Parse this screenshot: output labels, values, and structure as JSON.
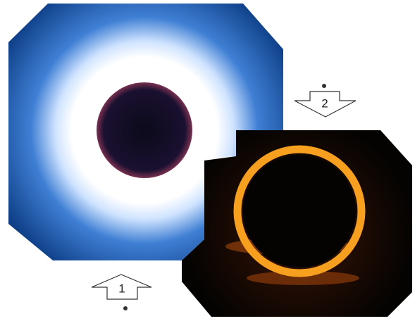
{
  "arrows": [
    {
      "label": "1"
    },
    {
      "label": "2"
    }
  ]
}
